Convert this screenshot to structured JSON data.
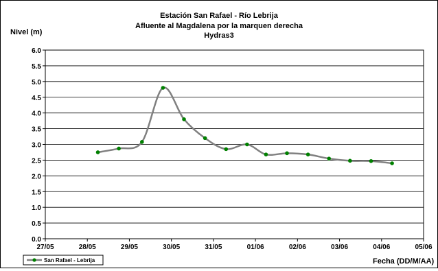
{
  "chart_data": {
    "type": "line",
    "title": "Estación San Rafael - Río Lebrija",
    "subtitle_lines": [
      "Afluente al Magdalena por la marquen derecha",
      "Hydras3"
    ],
    "ylabel": "Nivel (m)",
    "xlabel": "Fecha (DD/M/AA)",
    "ylim": [
      0,
      6
    ],
    "yticks": [
      "0.0",
      "0.5",
      "1.0",
      "1.5",
      "2.0",
      "2.5",
      "3.0",
      "3.5",
      "4.0",
      "4.5",
      "5.0",
      "5.5",
      "6.0"
    ],
    "xlim": [
      "27/05",
      "05/06"
    ],
    "xticks": [
      "27/05",
      "28/05",
      "29/05",
      "30/05",
      "31/05",
      "01/06",
      "02/06",
      "03/06",
      "04/06",
      "05/06"
    ],
    "grid": "horizontal",
    "legend_position": "bottom-left",
    "series": [
      {
        "name": "San Rafael - Lebrija",
        "color": "#808080",
        "marker_color": "#008000",
        "x": [
          1.25,
          1.75,
          2.3,
          2.8,
          3.3,
          3.8,
          4.3,
          4.8,
          5.25,
          5.75,
          6.25,
          6.75,
          7.25,
          7.75,
          8.25
        ],
        "y": [
          2.75,
          2.87,
          3.08,
          4.8,
          3.8,
          3.2,
          2.85,
          3.0,
          2.68,
          2.72,
          2.68,
          2.55,
          2.48,
          2.47,
          2.4
        ]
      }
    ]
  }
}
